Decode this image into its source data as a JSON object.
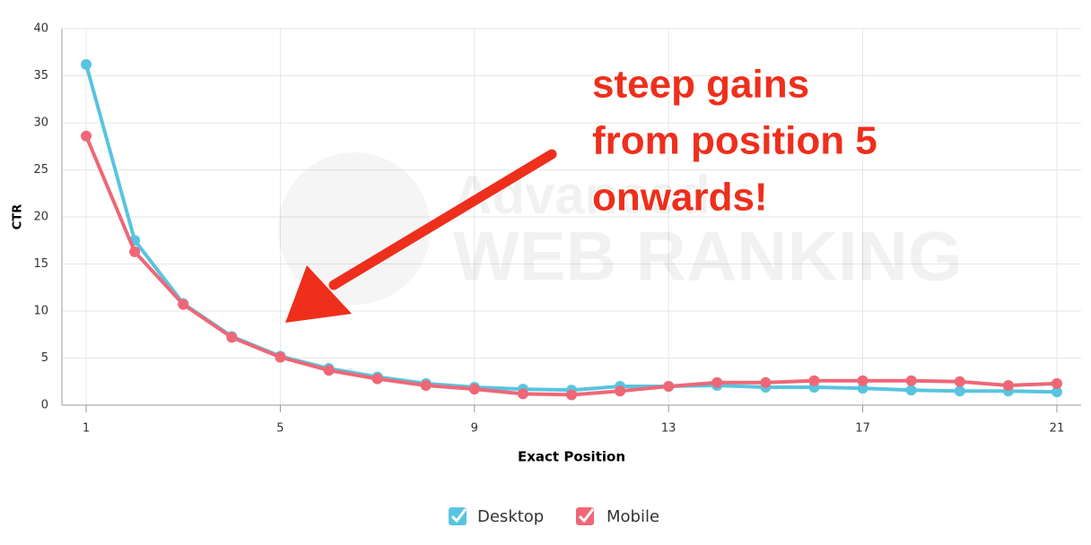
{
  "chart_data": {
    "type": "line",
    "x_label": "Exact Position",
    "y_label": "CTR",
    "x": [
      1,
      2,
      3,
      4,
      5,
      6,
      7,
      8,
      9,
      10,
      11,
      12,
      13,
      14,
      15,
      16,
      17,
      18,
      19,
      20,
      21
    ],
    "series": [
      {
        "name": "Desktop",
        "color": "#58c4e0",
        "values": [
          36.2,
          17.5,
          10.8,
          7.3,
          5.2,
          3.9,
          3.0,
          2.3,
          1.9,
          1.7,
          1.6,
          2.0,
          2.0,
          2.1,
          1.9,
          1.9,
          1.8,
          1.6,
          1.5,
          1.5,
          1.4
        ]
      },
      {
        "name": "Mobile",
        "color": "#ef6777",
        "values": [
          28.6,
          16.3,
          10.7,
          7.2,
          5.1,
          3.7,
          2.8,
          2.1,
          1.7,
          1.2,
          1.1,
          1.5,
          2.0,
          2.4,
          2.4,
          2.6,
          2.6,
          2.6,
          2.5,
          2.1,
          2.3
        ]
      }
    ],
    "xlim": [
      0.5,
      21.5
    ],
    "xticks": [
      1,
      5,
      9,
      13,
      17,
      21
    ],
    "ylim": [
      0,
      40
    ],
    "yticks": [
      0,
      5,
      10,
      15,
      20,
      25,
      30,
      35,
      40
    ],
    "grid": true,
    "annotation": [
      "steep gains",
      "from position 5",
      "onwards!"
    ],
    "watermark": [
      "Advanced",
      "WEB RANKING"
    ]
  }
}
